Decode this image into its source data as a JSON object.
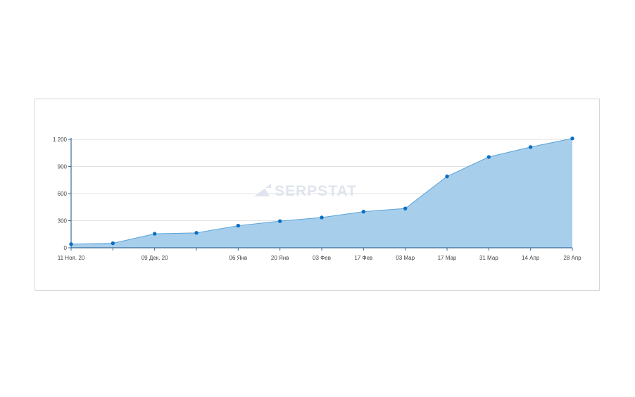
{
  "chart_data": {
    "type": "area",
    "title": "",
    "xlabel": "",
    "ylabel": "",
    "watermark": "SERPSTAT",
    "x_tick_labels": [
      "11 Ноя. 20",
      "09 Дек. 20",
      "06 Янв",
      "20 Янв",
      "03 Фев",
      "17 Фев",
      "03 Мар",
      "17 Мар",
      "31 Мар",
      "14 Апр",
      "28 Апр"
    ],
    "y_tick_labels": [
      "0",
      "300",
      "600",
      "900",
      "1 200"
    ],
    "ylim": [
      0,
      1200
    ],
    "x": [
      "2020-11-11",
      "2020-11-25",
      "2020-12-09",
      "2020-12-23",
      "2021-01-06",
      "2021-01-20",
      "2021-02-03",
      "2021-02-17",
      "2021-03-03",
      "2021-03-17",
      "2021-03-31",
      "2021-04-14",
      "2021-04-28"
    ],
    "values": [
      40,
      50,
      155,
      165,
      245,
      295,
      335,
      400,
      435,
      790,
      1005,
      1115,
      1210
    ],
    "grid": true,
    "colors": {
      "area": "#9fcbea",
      "line": "#5aa2d6",
      "marker": "#0b6fc1",
      "axis": "#3a6b95",
      "grid": "#e3e3e3"
    }
  }
}
